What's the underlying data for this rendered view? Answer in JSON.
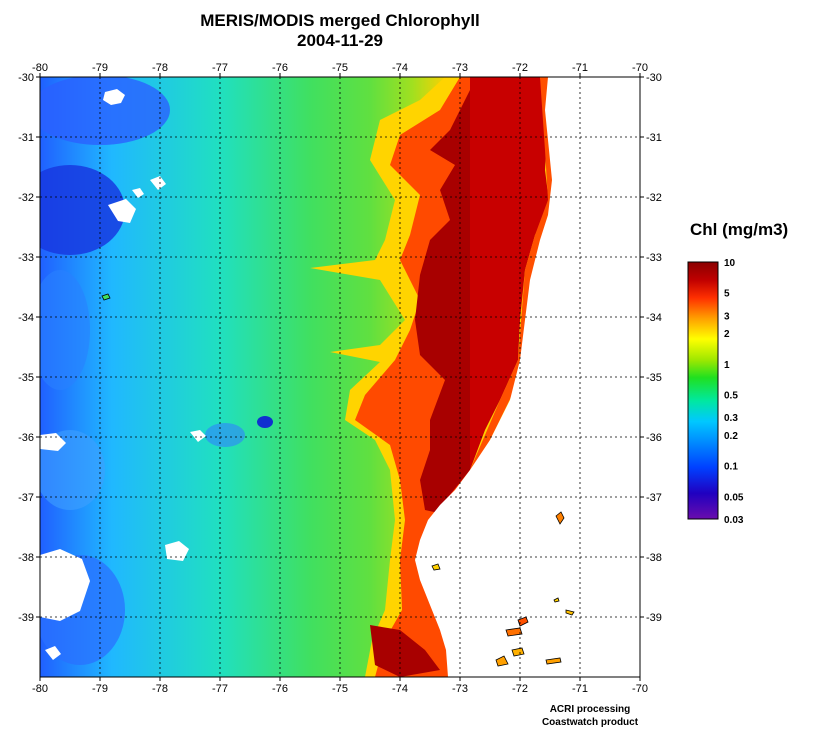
{
  "title": "MERIS/MODIS merged Chlorophyll",
  "subtitle": "2004-11-29",
  "colorbar": {
    "label": "Chl (mg/m3)",
    "tick_labels": [
      "10",
      "5",
      "3",
      "2",
      "1",
      "0.5",
      "0.3",
      "0.2",
      "0.1",
      "0.05",
      "0.03"
    ],
    "tick_values": [
      10,
      5,
      3,
      2,
      1,
      0.5,
      0.3,
      0.2,
      0.1,
      0.05,
      0.03
    ],
    "range": [
      0.03,
      10
    ],
    "scale": "log",
    "colors": [
      "#6a0dad",
      "#2000c0",
      "#0040ff",
      "#00c8ff",
      "#00e8a0",
      "#20e020",
      "#a0e800",
      "#ffff00",
      "#ffa000",
      "#ff3000",
      "#c00000",
      "#8a0000"
    ]
  },
  "axes": {
    "lon_labels": [
      "-80",
      "-79",
      "-78",
      "-77",
      "-76",
      "-75",
      "-74",
      "-73",
      "-72",
      "-71",
      "-70"
    ],
    "lon_values": [
      -80,
      -79,
      -78,
      -77,
      -76,
      -75,
      -74,
      -73,
      -72,
      -71,
      -70
    ],
    "lat_labels": [
      "-30",
      "-31",
      "-32",
      "-33",
      "-34",
      "-35",
      "-36",
      "-37",
      "-38",
      "-39"
    ],
    "lat_values": [
      -30,
      -31,
      -32,
      -33,
      -34,
      -35,
      -36,
      -37,
      -38,
      -39
    ],
    "lon_range": [
      -80,
      -70
    ],
    "lat_range": [
      -40,
      -30
    ],
    "grid": true
  },
  "credit": {
    "line1": "ACRI processing",
    "line2": "Coastwatch product"
  },
  "colors": {
    "land": "#ffffff",
    "grid": "#000000",
    "offshore_low": "#2a4cff",
    "open_ocean": "#20d8c0",
    "mid_ocean": "#40e040",
    "coastal_transition": "#ffd000",
    "coastal_high": "#e02000",
    "coastal_max": "#9a0000"
  }
}
